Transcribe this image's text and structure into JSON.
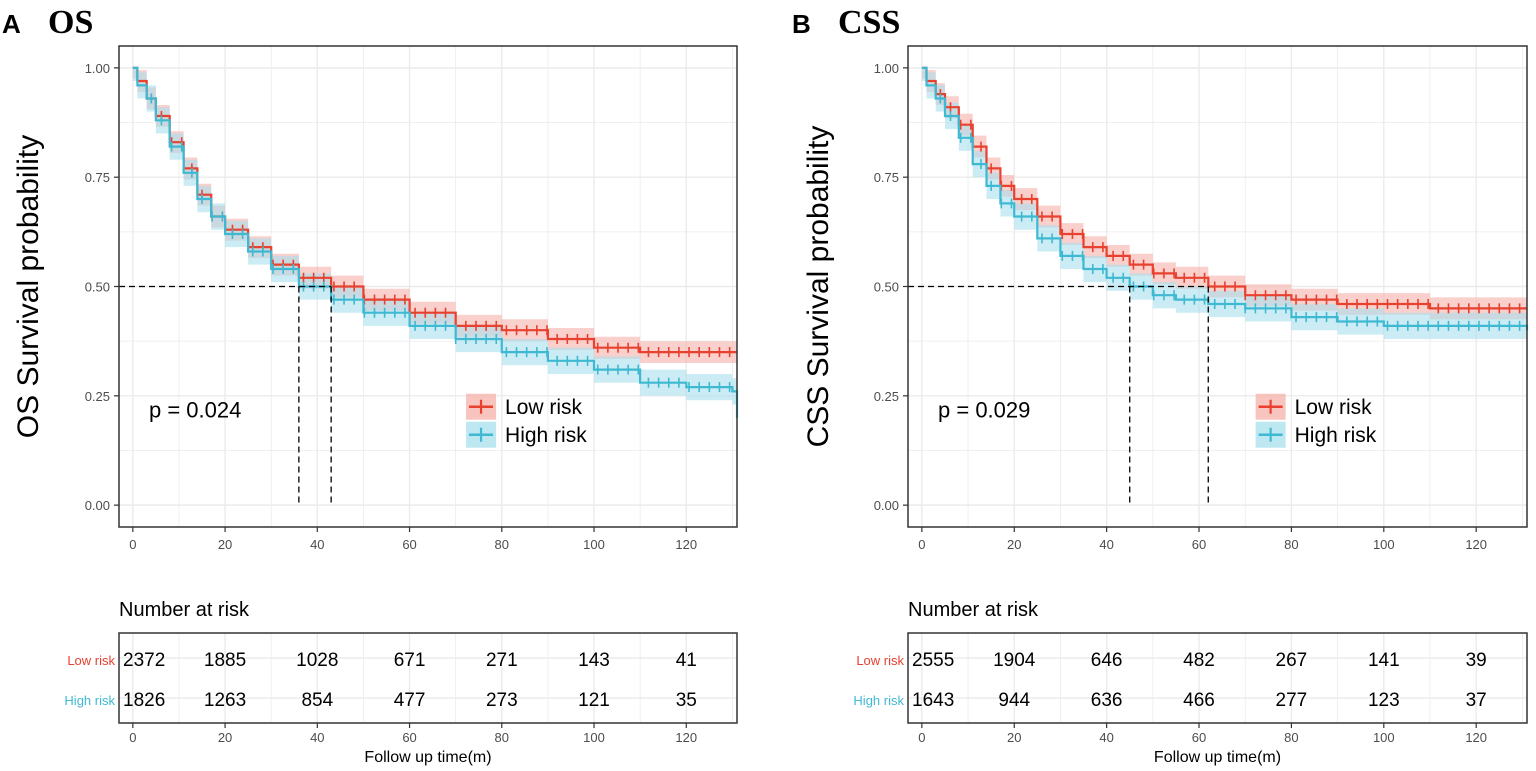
{
  "colors": {
    "low": "#e8412f",
    "high": "#3fb9d2",
    "low_band": "#f5b0a8",
    "high_band": "#a8e0ec",
    "grid": "#ebebeb",
    "frame": "#333333",
    "tick_text": "#4d4d4d"
  },
  "chart_data": [
    {
      "type": "line",
      "panel_letter": "A",
      "title": "OS",
      "ylabel": "OS Survival probability",
      "xlabel": "Follow up time(m)",
      "xlim": [
        -3,
        131
      ],
      "ylim": [
        -0.05,
        1.05
      ],
      "x_ticks": [
        0,
        20,
        40,
        60,
        80,
        100,
        120
      ],
      "x_tick_labels": [
        "0",
        "20",
        "40",
        "60",
        "80",
        "100",
        "120"
      ],
      "y_ticks": [
        0,
        0.25,
        0.5,
        0.75,
        1
      ],
      "y_tick_labels": [
        "0.00",
        "0.25",
        "0.50",
        "0.75",
        "1.00"
      ],
      "p_value": "p = 0.024",
      "legend_position": "right",
      "median_lines": [
        36,
        43
      ],
      "series": [
        {
          "name": "Low risk",
          "key": "low",
          "x": [
            0,
            1,
            3,
            5,
            8,
            11,
            14,
            17,
            20,
            25,
            30,
            36,
            43,
            50,
            60,
            70,
            80,
            90,
            100,
            110,
            120,
            131
          ],
          "y": [
            1.0,
            0.97,
            0.93,
            0.89,
            0.83,
            0.77,
            0.71,
            0.66,
            0.63,
            0.59,
            0.55,
            0.52,
            0.5,
            0.47,
            0.44,
            0.41,
            0.4,
            0.38,
            0.36,
            0.35,
            0.35,
            0.35
          ],
          "band": 0.025
        },
        {
          "name": "High risk",
          "key": "high",
          "x": [
            0,
            1,
            3,
            5,
            8,
            11,
            14,
            17,
            20,
            25,
            30,
            36,
            43,
            50,
            60,
            70,
            80,
            90,
            100,
            110,
            120,
            130,
            131
          ],
          "y": [
            1.0,
            0.96,
            0.93,
            0.88,
            0.82,
            0.76,
            0.7,
            0.66,
            0.62,
            0.58,
            0.54,
            0.5,
            0.47,
            0.44,
            0.41,
            0.38,
            0.35,
            0.33,
            0.31,
            0.28,
            0.27,
            0.26,
            0.2
          ],
          "band": 0.03
        }
      ],
      "risk_table": {
        "title": "Number at risk",
        "x": [
          0,
          20,
          40,
          60,
          80,
          100,
          120
        ],
        "rows": [
          {
            "label": "Low risk",
            "key": "low",
            "values": [
              "2372",
              "1885",
              "1028",
              "671",
              "271",
              "143",
              "41"
            ]
          },
          {
            "label": "High risk",
            "key": "high",
            "values": [
              "1826",
              "1263",
              "854",
              "477",
              "273",
              "121",
              "35"
            ]
          }
        ]
      }
    },
    {
      "type": "line",
      "panel_letter": "B",
      "title": "CSS",
      "ylabel": "CSS Survival probability",
      "xlabel": "Follow up time(m)",
      "xlim": [
        -3,
        131
      ],
      "ylim": [
        -0.05,
        1.05
      ],
      "x_ticks": [
        0,
        20,
        40,
        60,
        80,
        100,
        120
      ],
      "x_tick_labels": [
        "0",
        "20",
        "40",
        "60",
        "80",
        "100",
        "120"
      ],
      "y_ticks": [
        0,
        0.25,
        0.5,
        0.75,
        1
      ],
      "y_tick_labels": [
        "0.00",
        "0.25",
        "0.50",
        "0.75",
        "1.00"
      ],
      "p_value": "p = 0.029",
      "legend_position": "right",
      "median_lines": [
        45,
        62
      ],
      "series": [
        {
          "name": "Low risk",
          "key": "low",
          "x": [
            0,
            1,
            3,
            5,
            8,
            11,
            14,
            17,
            20,
            25,
            30,
            35,
            40,
            45,
            50,
            55,
            62,
            70,
            80,
            90,
            100,
            110,
            120,
            131
          ],
          "y": [
            1.0,
            0.97,
            0.94,
            0.91,
            0.87,
            0.82,
            0.77,
            0.73,
            0.7,
            0.66,
            0.62,
            0.59,
            0.57,
            0.55,
            0.53,
            0.52,
            0.5,
            0.48,
            0.47,
            0.46,
            0.46,
            0.45,
            0.45,
            0.45
          ],
          "band": 0.025
        },
        {
          "name": "High risk",
          "key": "high",
          "x": [
            0,
            1,
            3,
            5,
            8,
            11,
            14,
            17,
            20,
            25,
            30,
            35,
            40,
            45,
            50,
            55,
            62,
            70,
            80,
            90,
            100,
            110,
            120,
            131
          ],
          "y": [
            1.0,
            0.96,
            0.93,
            0.89,
            0.84,
            0.78,
            0.73,
            0.69,
            0.66,
            0.61,
            0.57,
            0.54,
            0.52,
            0.5,
            0.48,
            0.47,
            0.46,
            0.45,
            0.43,
            0.42,
            0.41,
            0.41,
            0.41,
            0.4
          ],
          "band": 0.03
        }
      ],
      "risk_table": {
        "title": "Number at risk",
        "x": [
          0,
          20,
          40,
          60,
          80,
          100,
          120
        ],
        "rows": [
          {
            "label": "Low risk",
            "key": "low",
            "values": [
              "2555",
              "1904",
              "646",
              "482",
              "267",
              "141",
              "39"
            ]
          },
          {
            "label": "High risk",
            "key": "high",
            "values": [
              "1643",
              "944",
              "636",
              "466",
              "277",
              "123",
              "37"
            ]
          }
        ]
      }
    }
  ]
}
